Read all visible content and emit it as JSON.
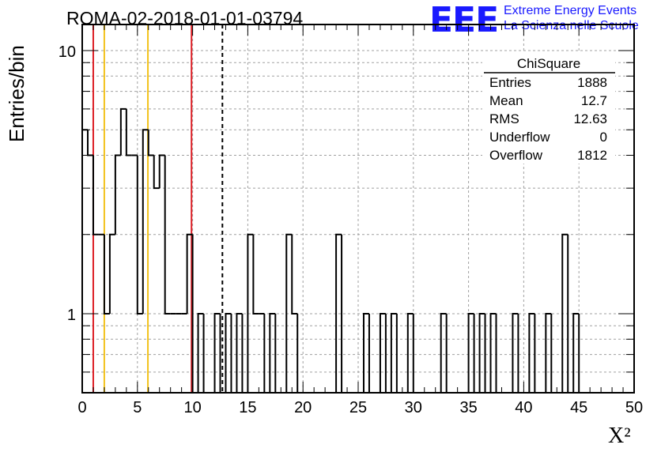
{
  "chart_data": {
    "type": "bar",
    "title": "ROMA-02-2018-01-01-03794",
    "xlabel": "X²",
    "ylabel": "Entries/bin",
    "xlim": [
      0,
      50
    ],
    "ylog": true,
    "grid": true,
    "x_ticks": [
      0,
      5,
      10,
      15,
      20,
      25,
      30,
      35,
      40,
      45,
      50
    ],
    "y_ticks": [
      1,
      10
    ],
    "bin_width": 0.5,
    "bins": [
      {
        "x0": 0.0,
        "y": 5
      },
      {
        "x0": 0.5,
        "y": 4
      },
      {
        "x0": 1.0,
        "y": 2
      },
      {
        "x0": 1.5,
        "y": 2
      },
      {
        "x0": 2.0,
        "y": 1
      },
      {
        "x0": 2.5,
        "y": 2
      },
      {
        "x0": 3.0,
        "y": 4
      },
      {
        "x0": 3.5,
        "y": 6
      },
      {
        "x0": 4.0,
        "y": 4
      },
      {
        "x0": 4.5,
        "y": 4
      },
      {
        "x0": 5.0,
        "y": 1
      },
      {
        "x0": 5.5,
        "y": 5
      },
      {
        "x0": 6.0,
        "y": 4
      },
      {
        "x0": 6.5,
        "y": 3
      },
      {
        "x0": 7.0,
        "y": 4
      },
      {
        "x0": 7.5,
        "y": 1
      },
      {
        "x0": 8.0,
        "y": 1
      },
      {
        "x0": 8.5,
        "y": 1
      },
      {
        "x0": 9.0,
        "y": 1
      },
      {
        "x0": 9.5,
        "y": 2
      },
      {
        "x0": 10.5,
        "y": 1
      },
      {
        "x0": 12.0,
        "y": 1
      },
      {
        "x0": 13.0,
        "y": 1
      },
      {
        "x0": 14.0,
        "y": 1
      },
      {
        "x0": 15.0,
        "y": 2
      },
      {
        "x0": 15.5,
        "y": 1
      },
      {
        "x0": 16.0,
        "y": 1
      },
      {
        "x0": 17.0,
        "y": 1
      },
      {
        "x0": 18.5,
        "y": 2
      },
      {
        "x0": 19.0,
        "y": 1
      },
      {
        "x0": 23.0,
        "y": 2
      },
      {
        "x0": 25.5,
        "y": 1
      },
      {
        "x0": 27.0,
        "y": 1
      },
      {
        "x0": 28.0,
        "y": 1
      },
      {
        "x0": 29.5,
        "y": 1
      },
      {
        "x0": 32.5,
        "y": 1
      },
      {
        "x0": 35.0,
        "y": 1
      },
      {
        "x0": 36.0,
        "y": 1
      },
      {
        "x0": 37.0,
        "y": 1
      },
      {
        "x0": 39.0,
        "y": 1
      },
      {
        "x0": 40.5,
        "y": 1
      },
      {
        "x0": 42.0,
        "y": 1
      },
      {
        "x0": 43.5,
        "y": 2
      },
      {
        "x0": 44.5,
        "y": 1
      }
    ],
    "vertical_lines": [
      {
        "x": 1.0,
        "color": "#dd1f26",
        "style": "solid"
      },
      {
        "x": 9.9,
        "color": "#dd1f26",
        "style": "solid"
      },
      {
        "x": 2.0,
        "color": "#f2c21b",
        "style": "solid"
      },
      {
        "x": 5.95,
        "color": "#f2c21b",
        "style": "solid"
      },
      {
        "x": 12.7,
        "color": "#000000",
        "style": "dashed"
      }
    ],
    "stats_box": {
      "title": "ChiSquare",
      "rows": [
        {
          "label": "Entries",
          "value": "1888"
        },
        {
          "label": "Mean",
          "value": "12.7"
        },
        {
          "label": "RMS",
          "value": "12.63"
        },
        {
          "label": "Underflow",
          "value": "0"
        },
        {
          "label": "Overflow",
          "value": "1812"
        }
      ]
    }
  },
  "logo": {
    "text": "EEE",
    "line1": "Extreme Energy Events",
    "line2": "La Scienza nelle Scuole",
    "color": "#1a1aff"
  }
}
